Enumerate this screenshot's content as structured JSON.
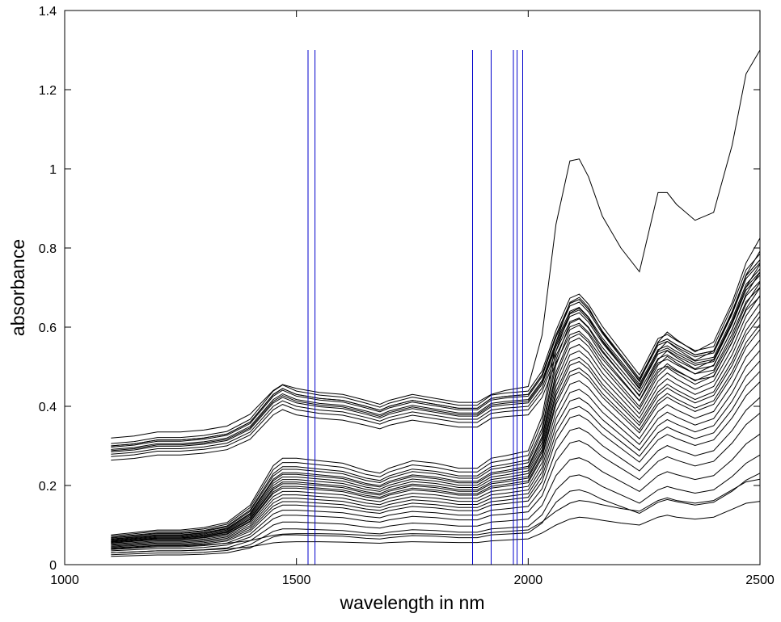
{
  "chart_data": {
    "type": "line",
    "title": "",
    "xlabel": "wavelength in nm",
    "ylabel": "absorbance",
    "xlim": [
      1000,
      2500
    ],
    "ylim": [
      0,
      1.4
    ],
    "xticks": [
      1000,
      1500,
      2000,
      2500
    ],
    "yticks": [
      0,
      0.2,
      0.4,
      0.6,
      0.8,
      1,
      1.2,
      1.4
    ],
    "grid": false,
    "legend": "none",
    "x": [
      1100,
      1150,
      1200,
      1250,
      1300,
      1350,
      1400,
      1450,
      1470,
      1500,
      1550,
      1600,
      1650,
      1680,
      1700,
      1750,
      1800,
      1850,
      1890,
      1920,
      1950,
      2000,
      2030,
      2060,
      2090,
      2110,
      2130,
      2160,
      2200,
      2240,
      2280,
      2300,
      2320,
      2360,
      2400,
      2440,
      2470,
      2500
    ],
    "profiles": {
      "upper_group": [
        0.3,
        0.305,
        0.315,
        0.315,
        0.32,
        0.33,
        0.36,
        0.43,
        0.445,
        0.43,
        0.42,
        0.415,
        0.4,
        0.39,
        0.4,
        0.415,
        0.405,
        0.395,
        0.395,
        0.42,
        0.425,
        0.43,
        0.48,
        0.58,
        0.66,
        0.67,
        0.645,
        0.59,
        0.53,
        0.47,
        0.56,
        0.57,
        0.555,
        0.53,
        0.54,
        0.64,
        0.73,
        0.77
      ],
      "lower_group": [
        0.06,
        0.065,
        0.07,
        0.07,
        0.075,
        0.085,
        0.12,
        0.2,
        0.215,
        0.215,
        0.21,
        0.205,
        0.19,
        0.185,
        0.195,
        0.21,
        0.205,
        0.195,
        0.195,
        0.215,
        0.22,
        0.23,
        0.3,
        0.45,
        0.53,
        0.54,
        0.52,
        0.47,
        0.42,
        0.37,
        0.45,
        0.47,
        0.455,
        0.43,
        0.45,
        0.53,
        0.61,
        0.66
      ],
      "peak_curve": [
        0.32,
        0.325,
        0.335,
        0.335,
        0.34,
        0.35,
        0.38,
        0.44,
        0.455,
        0.445,
        0.435,
        0.43,
        0.415,
        0.405,
        0.415,
        0.43,
        0.42,
        0.41,
        0.41,
        0.43,
        0.44,
        0.45,
        0.58,
        0.86,
        1.02,
        1.025,
        0.98,
        0.88,
        0.8,
        0.74,
        0.94,
        0.94,
        0.91,
        0.87,
        0.89,
        1.06,
        1.24,
        1.3
      ],
      "lowest_curve": [
        0.03,
        0.032,
        0.035,
        0.035,
        0.037,
        0.04,
        0.045,
        0.055,
        0.057,
        0.058,
        0.058,
        0.057,
        0.055,
        0.054,
        0.056,
        0.058,
        0.057,
        0.056,
        0.056,
        0.06,
        0.062,
        0.065,
        0.08,
        0.1,
        0.115,
        0.12,
        0.118,
        0.112,
        0.105,
        0.1,
        0.12,
        0.125,
        0.12,
        0.115,
        0.12,
        0.14,
        0.155,
        0.16
      ]
    },
    "series_styles": {
      "spectra_color": "#000000",
      "marker_color": "#0000cc"
    },
    "spectra": [
      {
        "profile": "upper_group",
        "scale": 1.0
      },
      {
        "profile": "upper_group",
        "scale": 0.96
      },
      {
        "profile": "upper_group",
        "scale": 0.93
      },
      {
        "profile": "upper_group",
        "scale": 0.91
      },
      {
        "profile": "upper_group",
        "scale": 0.99
      },
      {
        "profile": "upper_group",
        "scale": 1.02
      },
      {
        "profile": "upper_group",
        "scale": 0.88
      },
      {
        "profile": "upper_group",
        "scale": 0.95
      },
      {
        "profile": "upper_group",
        "scale": 0.97
      },
      {
        "profile": "upper_group",
        "scale": 1.0
      },
      {
        "profile": "peak_curve",
        "scale": 1.0
      },
      {
        "profile": "lower_group",
        "scale": 1.0
      },
      {
        "profile": "lower_group",
        "scale": 0.97
      },
      {
        "profile": "lower_group",
        "scale": 0.95
      },
      {
        "profile": "lower_group",
        "scale": 1.03
      },
      {
        "profile": "lower_group",
        "scale": 1.06
      },
      {
        "profile": "lower_group",
        "scale": 0.92
      },
      {
        "profile": "lower_group",
        "scale": 0.9
      },
      {
        "profile": "lower_group",
        "scale": 1.08
      },
      {
        "profile": "lower_group",
        "scale": 1.12
      },
      {
        "profile": "lower_group",
        "scale": 0.86
      },
      {
        "profile": "lower_group",
        "scale": 0.82
      },
      {
        "profile": "lower_group",
        "scale": 1.15
      },
      {
        "profile": "lower_group",
        "scale": 1.2
      },
      {
        "profile": "lower_group",
        "scale": 0.78
      },
      {
        "profile": "lower_group",
        "scale": 0.74
      },
      {
        "profile": "lower_group",
        "scale": 0.7
      },
      {
        "profile": "lower_group",
        "scale": 0.64
      },
      {
        "profile": "lower_group",
        "scale": 0.58
      },
      {
        "profile": "lower_group",
        "scale": 1.25
      },
      {
        "profile": "lower_group",
        "scale": 0.5
      },
      {
        "profile": "lower_group",
        "scale": 0.42
      },
      {
        "profile": "lower_group",
        "scale": 0.35
      },
      {
        "profile": "lowest_curve",
        "scale": 1.0
      },
      {
        "profile": "lowest_curve",
        "scale": 1.35
      }
    ],
    "vertical_lines": {
      "x": [
        1525,
        1540,
        1880,
        1920,
        1968,
        1976,
        1988
      ],
      "y_range": [
        0,
        1.3
      ]
    }
  }
}
